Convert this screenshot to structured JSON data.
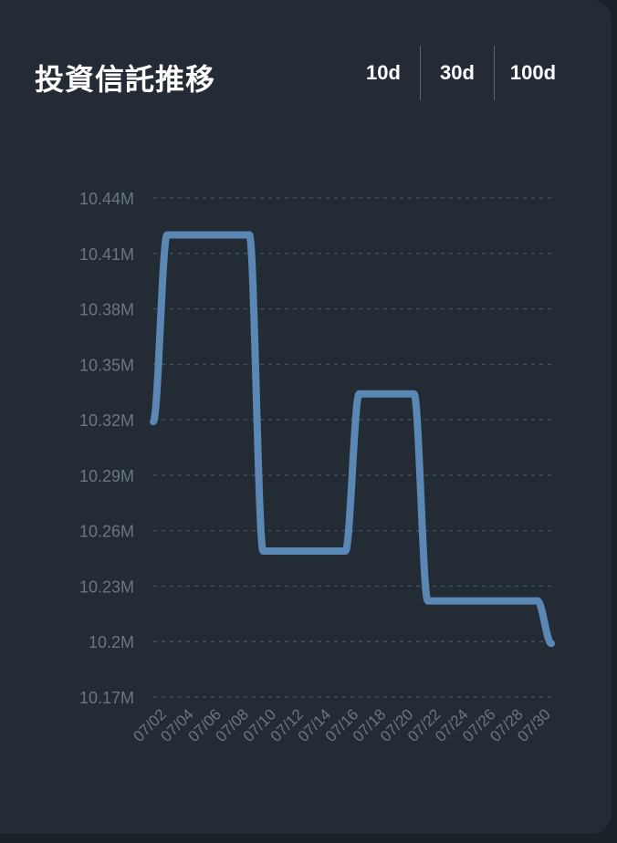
{
  "header": {
    "title": "投資信託推移"
  },
  "range_tabs": [
    {
      "label": "10d"
    },
    {
      "label": "30d"
    },
    {
      "label": "100d"
    }
  ],
  "colors": {
    "background": "#232b35",
    "line": "#5b87b4",
    "grid": "#4a5562",
    "tick_text": "#6b7684"
  },
  "chart_data": {
    "type": "line",
    "title": "投資信託推移",
    "xlabel": "",
    "ylabel": "",
    "ylim": [
      10.17,
      10.44
    ],
    "y_ticks": [
      "10.44M",
      "10.41M",
      "10.38M",
      "10.35M",
      "10.32M",
      "10.29M",
      "10.26M",
      "10.23M",
      "10.2M",
      "10.17M"
    ],
    "y_tick_values": [
      10.44,
      10.41,
      10.38,
      10.35,
      10.32,
      10.29,
      10.26,
      10.23,
      10.2,
      10.17
    ],
    "x_ticks": [
      "07/02",
      "07/04",
      "07/06",
      "07/08",
      "07/10",
      "07/12",
      "07/14",
      "07/16",
      "07/18",
      "07/20",
      "07/22",
      "07/24",
      "07/26",
      "07/28",
      "07/30"
    ],
    "grid": true,
    "series": [
      {
        "values": [
          {
            "x": "07/01",
            "y": 10.319
          },
          {
            "x": "07/02",
            "y": 10.42
          },
          {
            "x": "07/08",
            "y": 10.42
          },
          {
            "x": "07/09",
            "y": 10.249
          },
          {
            "x": "07/15",
            "y": 10.249
          },
          {
            "x": "07/16",
            "y": 10.334
          },
          {
            "x": "07/20",
            "y": 10.334
          },
          {
            "x": "07/21",
            "y": 10.222
          },
          {
            "x": "07/29",
            "y": 10.222
          },
          {
            "x": "07/30",
            "y": 10.199
          }
        ]
      }
    ]
  }
}
